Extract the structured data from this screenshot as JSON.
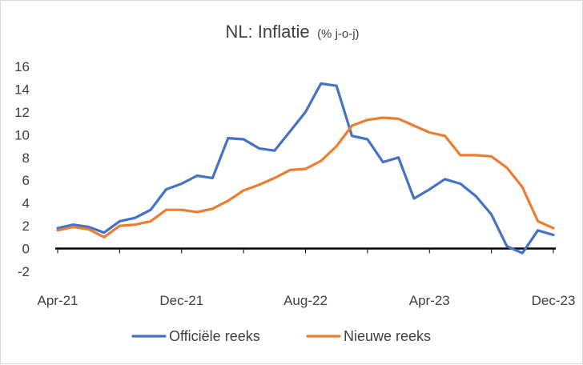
{
  "chart_data": {
    "type": "line",
    "title": "NL: Inflatie",
    "subtitle": "(% j-o-j)",
    "xlabel": "",
    "ylabel": "",
    "ylim": [
      -2,
      16
    ],
    "yticks": [
      -2,
      0,
      2,
      4,
      6,
      8,
      10,
      12,
      14,
      16
    ],
    "xtick_labels": [
      {
        "label": "Apr-21",
        "index": 0
      },
      {
        "label": "Dec-21",
        "index": 8
      },
      {
        "label": "Aug-22",
        "index": 16
      },
      {
        "label": "Apr-23",
        "index": 24
      },
      {
        "label": "Dec-23",
        "index": 32
      }
    ],
    "x": [
      "Apr-21",
      "May-21",
      "Jun-21",
      "Jul-21",
      "Aug-21",
      "Sep-21",
      "Oct-21",
      "Nov-21",
      "Dec-21",
      "Jan-22",
      "Feb-22",
      "Mar-22",
      "Apr-22",
      "May-22",
      "Jun-22",
      "Jul-22",
      "Aug-22",
      "Sep-22",
      "Oct-22",
      "Nov-22",
      "Dec-22",
      "Jan-23",
      "Feb-23",
      "Mar-23",
      "Apr-23",
      "May-23",
      "Jun-23",
      "Jul-23",
      "Aug-23",
      "Sep-23",
      "Oct-23",
      "Nov-23",
      "Dec-23"
    ],
    "series": [
      {
        "name": "Officiële reeks",
        "color": "#4472c4",
        "values": [
          1.8,
          2.1,
          1.9,
          1.4,
          2.4,
          2.7,
          3.4,
          5.2,
          5.7,
          6.4,
          6.2,
          9.7,
          9.6,
          8.8,
          8.6,
          10.3,
          12.0,
          14.5,
          14.3,
          9.9,
          9.6,
          7.6,
          8.0,
          4.4,
          5.2,
          6.1,
          5.7,
          4.6,
          3.0,
          0.2,
          -0.4,
          1.6,
          1.2
        ]
      },
      {
        "name": "Nieuwe reeks",
        "color": "#ed7d31",
        "values": [
          1.6,
          1.9,
          1.7,
          1.0,
          2.0,
          2.1,
          2.4,
          3.4,
          3.4,
          3.2,
          3.5,
          4.2,
          5.1,
          5.6,
          6.2,
          6.9,
          7.0,
          7.7,
          9.0,
          10.8,
          11.3,
          11.5,
          11.4,
          10.8,
          10.2,
          9.9,
          8.2,
          8.2,
          8.1,
          7.1,
          5.4,
          2.4,
          1.8
        ]
      }
    ],
    "zero_line_color": "#000000",
    "grid": false,
    "legend": "bottom"
  }
}
